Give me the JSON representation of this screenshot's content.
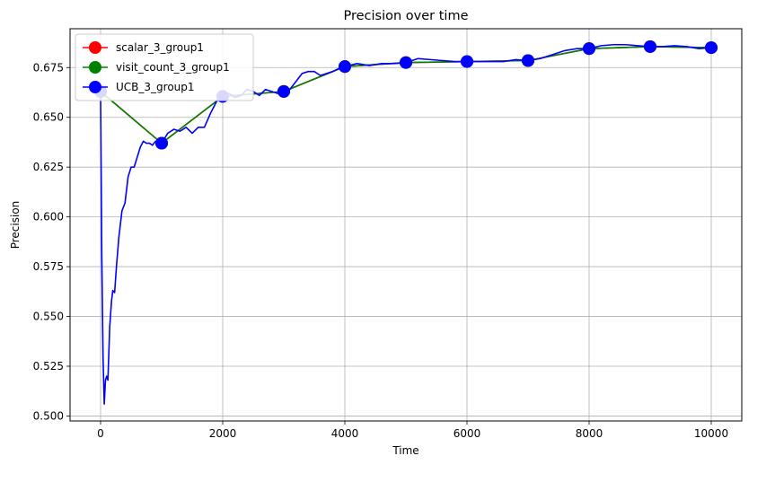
{
  "chart_data": {
    "type": "line",
    "title": "Precision over time",
    "xlabel": "Time",
    "ylabel": "Precision",
    "xlim": [
      -500,
      10500
    ],
    "ylim": [
      0.4975,
      0.6945
    ],
    "xticks": [
      0,
      2000,
      4000,
      6000,
      8000,
      10000
    ],
    "xtick_labels": [
      "0",
      "2000",
      "4000",
      "6000",
      "8000",
      "10000"
    ],
    "yticks": [
      0.5,
      0.525,
      0.55,
      0.575,
      0.6,
      0.625,
      0.65,
      0.675
    ],
    "ytick_labels": [
      "0.500",
      "0.525",
      "0.550",
      "0.575",
      "0.600",
      "0.625",
      "0.650",
      "0.675"
    ],
    "grid": true,
    "legend_position": "top-left",
    "series": [
      {
        "name": "scalar_3_group1",
        "color": "#ff0000",
        "markers_x": [
          0,
          1000,
          2000,
          3000,
          4000,
          5000,
          6000,
          7000,
          8000,
          9000,
          10000
        ],
        "markers_y": [
          0.663,
          0.637,
          0.6605,
          0.663,
          0.6755,
          0.6775,
          0.678,
          0.6785,
          0.6845,
          0.6855,
          0.685
        ]
      },
      {
        "name": "visit_count_3_group1",
        "color": "#008000",
        "markers_x": [
          0,
          1000,
          2000,
          3000,
          4000,
          5000,
          6000,
          7000,
          8000,
          9000,
          10000
        ],
        "markers_y": [
          0.663,
          0.637,
          0.6605,
          0.663,
          0.6755,
          0.6775,
          0.678,
          0.6785,
          0.6845,
          0.6855,
          0.685
        ]
      },
      {
        "name": "UCB_3_group1",
        "color": "#0000ff",
        "x": [
          0,
          20,
          40,
          60,
          80,
          100,
          120,
          150,
          180,
          200,
          230,
          260,
          300,
          350,
          400,
          450,
          500,
          550,
          600,
          650,
          700,
          750,
          800,
          850,
          900,
          950,
          1000,
          1100,
          1200,
          1300,
          1400,
          1500,
          1600,
          1700,
          1800,
          1900,
          2000,
          2100,
          2200,
          2300,
          2400,
          2500,
          2600,
          2700,
          2800,
          2900,
          3000,
          3100,
          3200,
          3300,
          3400,
          3500,
          3600,
          3700,
          3800,
          3900,
          4000,
          4200,
          4400,
          4600,
          4800,
          5000,
          5200,
          5400,
          5600,
          5800,
          6000,
          6200,
          6400,
          6600,
          6800,
          7000,
          7200,
          7400,
          7600,
          7800,
          8000,
          8200,
          8400,
          8600,
          8800,
          9000,
          9200,
          9400,
          9600,
          9800,
          10000
        ],
        "y": [
          0.663,
          0.58,
          0.53,
          0.506,
          0.518,
          0.52,
          0.518,
          0.545,
          0.558,
          0.563,
          0.562,
          0.575,
          0.59,
          0.603,
          0.607,
          0.62,
          0.625,
          0.625,
          0.63,
          0.635,
          0.638,
          0.637,
          0.637,
          0.636,
          0.638,
          0.637,
          0.637,
          0.642,
          0.644,
          0.643,
          0.645,
          0.642,
          0.645,
          0.645,
          0.652,
          0.658,
          0.6605,
          0.662,
          0.66,
          0.661,
          0.664,
          0.663,
          0.661,
          0.664,
          0.663,
          0.662,
          0.663,
          0.664,
          0.668,
          0.672,
          0.673,
          0.673,
          0.671,
          0.672,
          0.673,
          0.6745,
          0.6755,
          0.677,
          0.676,
          0.677,
          0.677,
          0.6775,
          0.6795,
          0.679,
          0.6785,
          0.678,
          0.678,
          0.678,
          0.678,
          0.678,
          0.679,
          0.6785,
          0.6795,
          0.6815,
          0.6835,
          0.6845,
          0.6845,
          0.686,
          0.6865,
          0.6865,
          0.686,
          0.6855,
          0.6855,
          0.686,
          0.6855,
          0.6845,
          0.685
        ],
        "markers_x": [
          0,
          1000,
          2000,
          3000,
          4000,
          5000,
          6000,
          7000,
          8000,
          9000,
          10000
        ],
        "markers_y": [
          0.663,
          0.637,
          0.6605,
          0.663,
          0.6755,
          0.6775,
          0.678,
          0.6785,
          0.6845,
          0.6855,
          0.685
        ]
      }
    ]
  }
}
